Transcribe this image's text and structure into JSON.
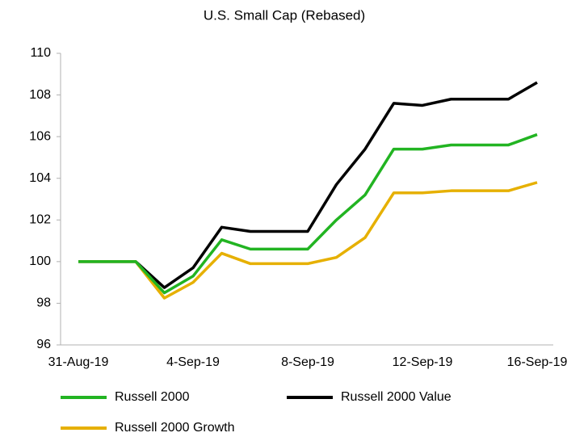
{
  "chart_data": {
    "type": "line",
    "title": "U.S. Small Cap (Rebased)",
    "categories": [
      "31-Aug-19",
      null,
      null,
      null,
      "4-Sep-19",
      null,
      null,
      null,
      "8-Sep-19",
      null,
      null,
      null,
      "12-Sep-19",
      null,
      null,
      null,
      "16-Sep-19"
    ],
    "series": [
      {
        "name": "Russell 2000",
        "color": "#22b422",
        "values": [
          100,
          100,
          100,
          98.5,
          99.3,
          101.05,
          100.6,
          100.6,
          100.6,
          102,
          103.2,
          105.4,
          105.4,
          105.6,
          105.6,
          105.6,
          106.1
        ]
      },
      {
        "name": "Russell 2000 Value",
        "color": "#000000",
        "values": [
          100,
          100,
          100,
          98.75,
          99.7,
          101.65,
          101.45,
          101.45,
          101.45,
          103.7,
          105.4,
          107.6,
          107.5,
          107.8,
          107.8,
          107.8,
          108.6
        ]
      },
      {
        "name": "Russell 2000 Growth",
        "color": "#e6b000",
        "values": [
          100,
          100,
          100,
          98.25,
          99,
          100.4,
          99.9,
          99.9,
          99.9,
          100.2,
          101.15,
          103.3,
          103.3,
          103.4,
          103.4,
          103.4,
          103.8
        ]
      }
    ],
    "ylim": [
      96,
      110
    ],
    "yticks": [
      96,
      98,
      100,
      102,
      104,
      106,
      108,
      110
    ],
    "legend": "bottom"
  }
}
